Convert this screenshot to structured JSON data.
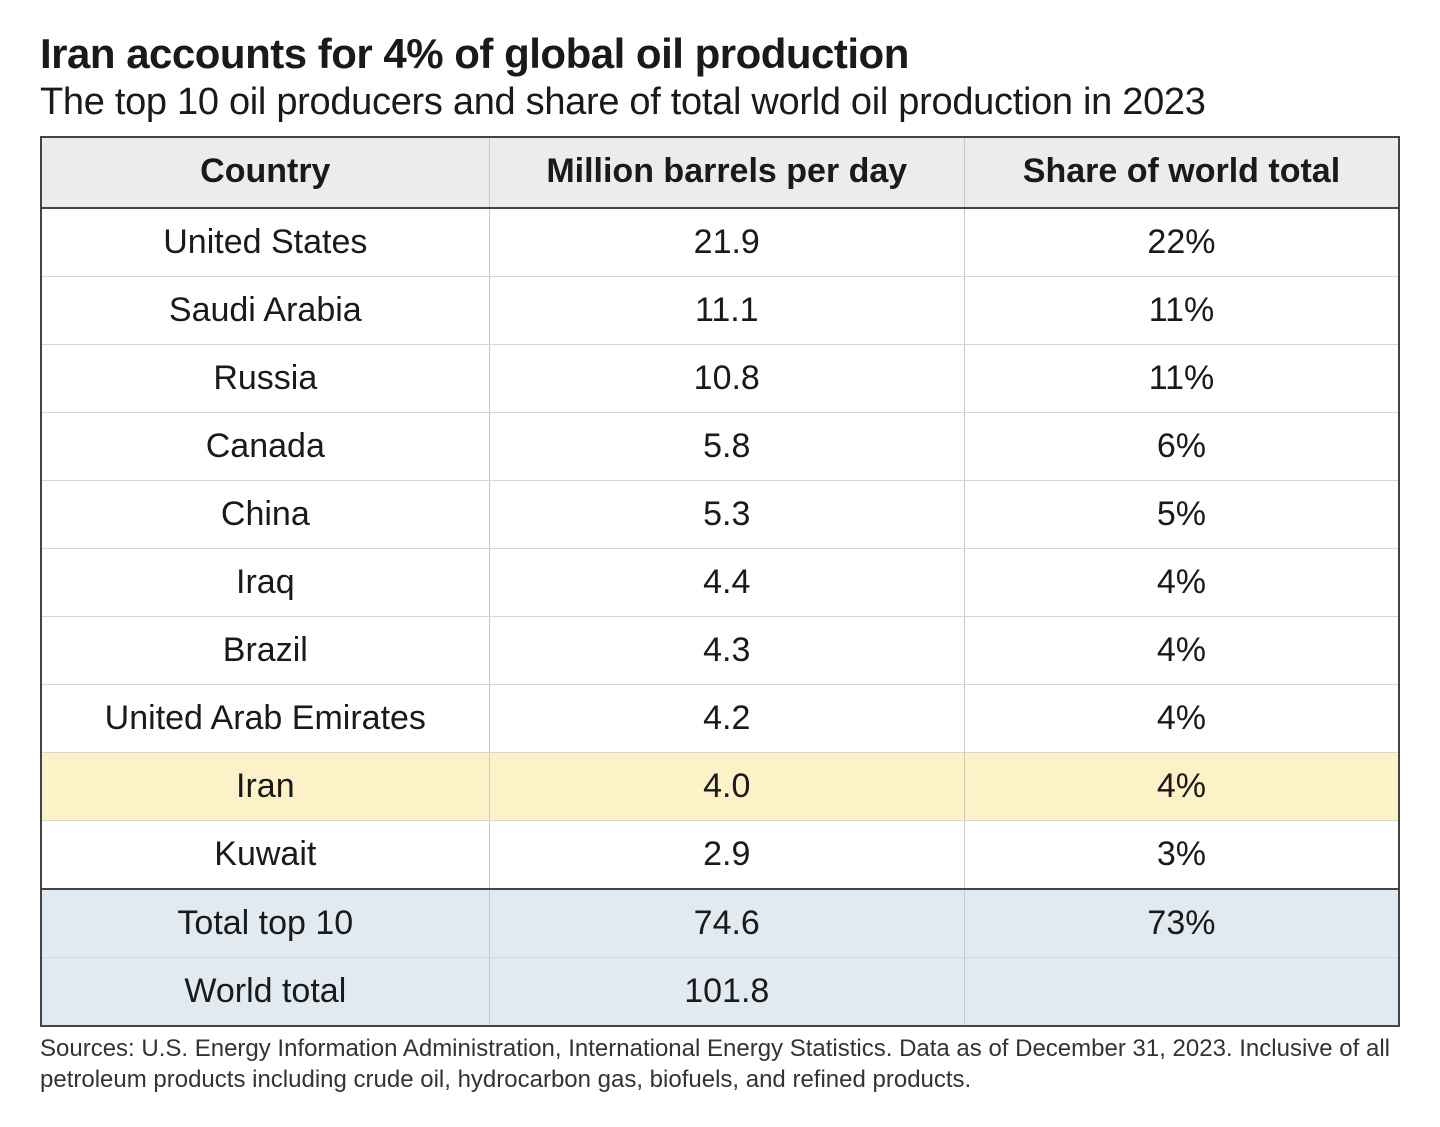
{
  "title": "Iran accounts for 4% of global oil production",
  "subtitle": "The top 10 oil producers and share of total world oil production in 2023",
  "columns": [
    "Country",
    "Million barrels per day",
    "Share of world total"
  ],
  "rows": [
    {
      "country": "United States",
      "bpd": "21.9",
      "share": "22%",
      "highlight": false
    },
    {
      "country": "Saudi Arabia",
      "bpd": "11.1",
      "share": "11%",
      "highlight": false
    },
    {
      "country": "Russia",
      "bpd": "10.8",
      "share": "11%",
      "highlight": false
    },
    {
      "country": "Canada",
      "bpd": "5.8",
      "share": "6%",
      "highlight": false
    },
    {
      "country": "China",
      "bpd": "5.3",
      "share": "5%",
      "highlight": false
    },
    {
      "country": "Iraq",
      "bpd": "4.4",
      "share": "4%",
      "highlight": false
    },
    {
      "country": "Brazil",
      "bpd": "4.3",
      "share": "4%",
      "highlight": false
    },
    {
      "country": "United Arab Emirates",
      "bpd": "4.2",
      "share": "4%",
      "highlight": false
    },
    {
      "country": "Iran",
      "bpd": "4.0",
      "share": "4%",
      "highlight": true
    },
    {
      "country": "Kuwait",
      "bpd": "2.9",
      "share": "3%",
      "highlight": false
    }
  ],
  "summary": [
    {
      "label": "Total top 10",
      "bpd": "74.6",
      "share": "73%"
    },
    {
      "label": "World total",
      "bpd": "101.8",
      "share": ""
    }
  ],
  "footnote": "Sources: U.S. Energy Information Administration, International Energy Statistics. Data as of December 31, 2023. Inclusive of all petroleum products including crude oil, hydrocarbon gas, biofuels, and refined products.",
  "style": {
    "type": "table",
    "background_color": "#ffffff",
    "text_color": "#1a1a1a",
    "header_bg": "#ececec",
    "highlight_bg": "#fdf1c7",
    "summary_bg": "#e2eaf1",
    "outer_border_color": "#444444",
    "inner_border_color": "#c9c9c9",
    "row_divider_color": "#d6d6d6",
    "title_fontsize_pt": 31,
    "subtitle_fontsize_pt": 28,
    "header_fontsize_pt": 25,
    "cell_fontsize_pt": 25,
    "footnote_fontsize_pt": 18,
    "column_widths_pct": [
      33,
      35,
      32
    ],
    "column_align": [
      "center",
      "center",
      "center"
    ]
  }
}
